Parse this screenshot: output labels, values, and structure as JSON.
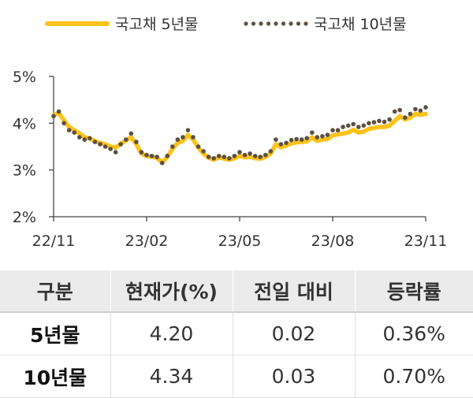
{
  "chart_data": {
    "type": "line",
    "ylim": [
      2,
      5
    ],
    "yticks": [
      "2%",
      "3%",
      "4%",
      "5%"
    ],
    "ytick_values": [
      2,
      3,
      4,
      5
    ],
    "xticks": [
      "22/11",
      "23/02",
      "23/05",
      "23/08",
      "23/11"
    ],
    "legend_position": "top",
    "series": [
      {
        "name": "국고채 5년물",
        "style": "line",
        "color": "#fbc21a",
        "values": [
          4.17,
          4.22,
          4.06,
          3.92,
          3.85,
          3.78,
          3.7,
          3.67,
          3.62,
          3.58,
          3.55,
          3.5,
          3.48,
          3.56,
          3.63,
          3.7,
          3.55,
          3.35,
          3.3,
          3.28,
          3.26,
          3.16,
          3.28,
          3.45,
          3.58,
          3.62,
          3.75,
          3.65,
          3.48,
          3.35,
          3.26,
          3.22,
          3.27,
          3.24,
          3.22,
          3.25,
          3.3,
          3.27,
          3.28,
          3.25,
          3.24,
          3.28,
          3.35,
          3.55,
          3.48,
          3.52,
          3.57,
          3.59,
          3.6,
          3.61,
          3.7,
          3.62,
          3.65,
          3.66,
          3.74,
          3.76,
          3.78,
          3.8,
          3.86,
          3.8,
          3.82,
          3.88,
          3.9,
          3.92,
          3.92,
          3.95,
          4.05,
          4.15,
          4.08,
          4.12,
          4.2,
          4.18,
          4.2
        ]
      },
      {
        "name": "국고채 10년물",
        "style": "dotted",
        "color": "#5c5043",
        "values": [
          4.15,
          4.25,
          4.0,
          3.85,
          3.8,
          3.7,
          3.65,
          3.68,
          3.6,
          3.55,
          3.5,
          3.45,
          3.38,
          3.55,
          3.65,
          3.78,
          3.6,
          3.38,
          3.32,
          3.3,
          3.28,
          3.15,
          3.3,
          3.5,
          3.65,
          3.7,
          3.85,
          3.7,
          3.5,
          3.4,
          3.28,
          3.25,
          3.3,
          3.28,
          3.25,
          3.3,
          3.38,
          3.32,
          3.35,
          3.3,
          3.28,
          3.32,
          3.4,
          3.65,
          3.55,
          3.58,
          3.64,
          3.66,
          3.65,
          3.68,
          3.8,
          3.7,
          3.72,
          3.75,
          3.85,
          3.85,
          3.92,
          3.95,
          3.98,
          3.92,
          3.95,
          4.0,
          4.02,
          4.05,
          4.03,
          4.08,
          4.25,
          4.28,
          4.12,
          4.2,
          4.3,
          4.27,
          4.34
        ]
      }
    ]
  },
  "table": {
    "headers": [
      "구분",
      "현재가(%)",
      "전일 대비",
      "등락률"
    ],
    "rows": [
      [
        "5년물",
        "4.20",
        "0.02",
        "0.36%"
      ],
      [
        "10년물",
        "4.34",
        "0.03",
        "0.70%"
      ]
    ]
  }
}
